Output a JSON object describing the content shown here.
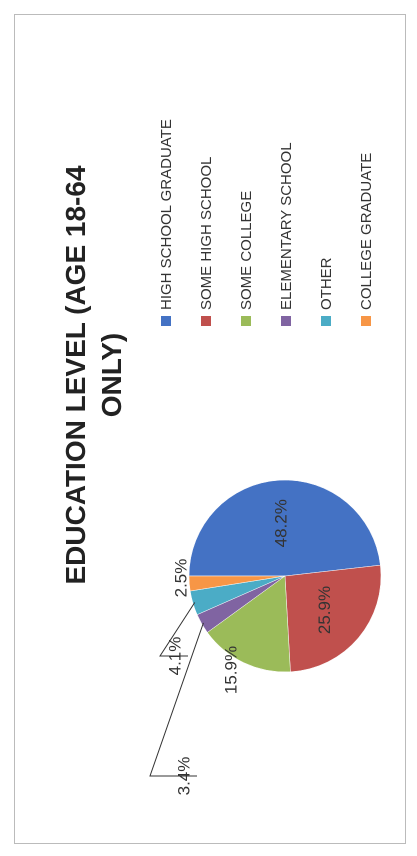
{
  "chart_data": {
    "type": "pie",
    "title": "EDUCATION LEVEL (AGE 18-64 ONLY)",
    "categories": [
      "HIGH SCHOOL GRADUATE",
      "SOME HIGH SCHOOL",
      "SOME COLLEGE",
      "ELEMENTARY SCHOOL",
      "OTHER",
      "COLLEGE GRADUATE"
    ],
    "values": [
      48.2,
      25.9,
      15.9,
      3.4,
      4.1,
      2.5
    ],
    "value_labels": [
      "48.2%",
      "25.9%",
      "15.9%",
      "3.4%",
      "4.1%",
      "2.5%"
    ],
    "colors": [
      "#4472c4",
      "#c0504d",
      "#9bbb59",
      "#8064a2",
      "#4bacc6",
      "#f79646"
    ],
    "legend": "right"
  }
}
